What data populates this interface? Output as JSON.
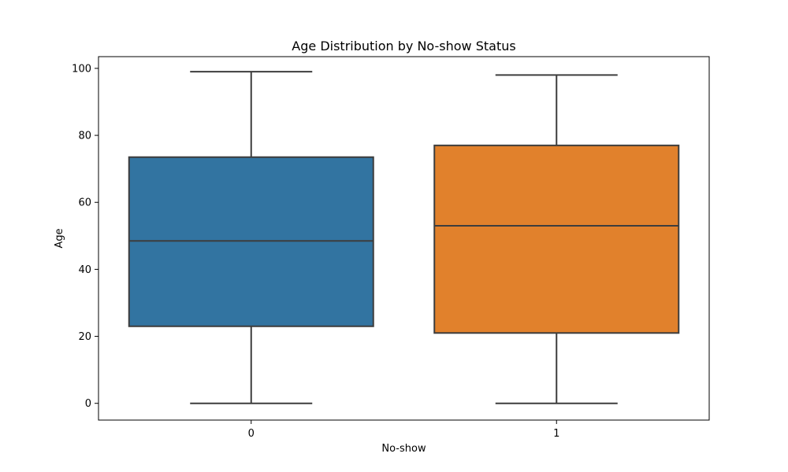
{
  "chart_data": {
    "type": "box",
    "title": "Age Distribution by No-show Status",
    "xlabel": "No-show",
    "ylabel": "Age",
    "ylim": [
      -5,
      103.5
    ],
    "yticks": [
      0,
      20,
      40,
      60,
      80,
      100
    ],
    "grid": false,
    "categories": [
      "0",
      "1"
    ],
    "boxes": [
      {
        "category": "0",
        "whisker_low": 0,
        "q1": 23,
        "median": 48.5,
        "q3": 73.5,
        "whisker_high": 99,
        "color": "#3274a1"
      },
      {
        "category": "1",
        "whisker_low": 0,
        "q1": 21,
        "median": 53,
        "q3": 77,
        "whisker_high": 98,
        "color": "#e1812c"
      }
    ],
    "line_color": "#3d3d3d"
  }
}
